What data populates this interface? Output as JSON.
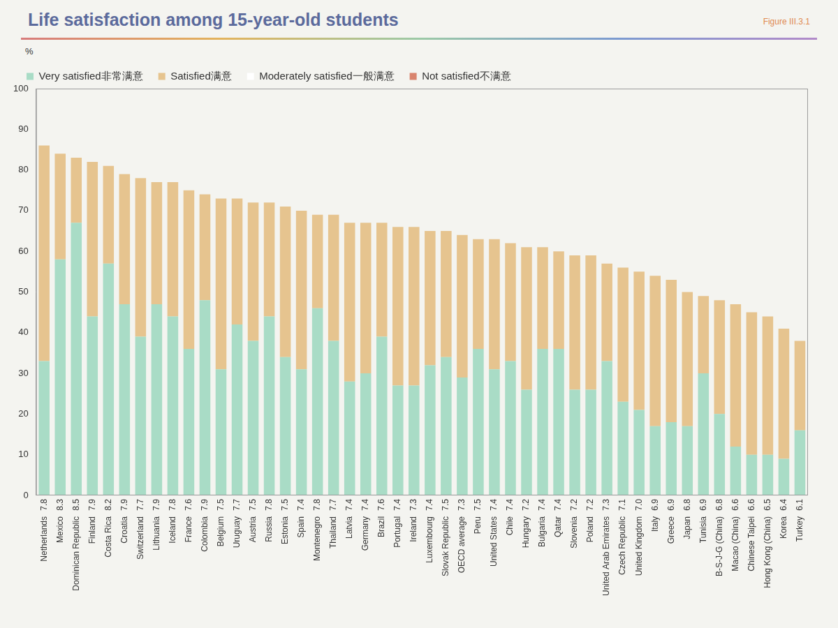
{
  "chart_data": {
    "type": "bar",
    "title": "Life satisfaction among 15-year-old students",
    "figure_label": "Figure III.3.1",
    "ylabel": "%",
    "categories": [
      "Netherlands",
      "Mexico",
      "Dominican Republic",
      "Finland",
      "Costa Rica",
      "Croatia",
      "Switzerland",
      "Lithuania",
      "Iceland",
      "France",
      "Colombia",
      "Belgium",
      "Uruguay",
      "Austria",
      "Russia",
      "Estonia",
      "Spain",
      "Montenegro",
      "Thailand",
      "Latvia",
      "Germany",
      "Brazil",
      "Portugal",
      "Ireland",
      "Luxembourg",
      "Slovak Republic",
      "OECD average",
      "Peru",
      "United States",
      "Chile",
      "Hungary",
      "Bulgaria",
      "Qatar",
      "Slovenia",
      "Poland",
      "United Arab Emirates",
      "Czech Republic",
      "United Kingdom",
      "Italy",
      "Greece",
      "Japan",
      "Tunisia",
      "B-S-J-G (China)",
      "Macao (China)",
      "Chinese Taipei",
      "Hong Kong (China)",
      "Korea",
      "Turkey"
    ],
    "means": [
      7.8,
      8.3,
      8.5,
      7.9,
      8.2,
      7.9,
      7.7,
      7.9,
      7.8,
      7.6,
      7.9,
      7.5,
      7.7,
      7.5,
      7.8,
      7.5,
      7.4,
      7.8,
      7.7,
      7.4,
      7.4,
      7.6,
      7.4,
      7.3,
      7.4,
      7.5,
      7.3,
      7.5,
      7.4,
      7.4,
      7.2,
      7.4,
      7.4,
      7.2,
      7.2,
      7.3,
      7.1,
      {
        "value": 7,
        "label": "7.0"
      },
      6.9,
      6.9,
      6.8,
      6.9,
      6.8,
      6.6,
      6.6,
      6.5,
      6.4,
      6.1
    ],
    "series": [
      {
        "name": "Very satisfied非常满意",
        "color": "#a9dcc6",
        "values": [
          33,
          58,
          67,
          44,
          57,
          47,
          39,
          47,
          44,
          36,
          48,
          31,
          42,
          38,
          44,
          34,
          31,
          46,
          38,
          28,
          30,
          39,
          27,
          27,
          32,
          34,
          29,
          36,
          31,
          33,
          26,
          36,
          36,
          26,
          26,
          33,
          23,
          21,
          17,
          18,
          17,
          30,
          20,
          12,
          10,
          10,
          9,
          16
        ]
      },
      {
        "name": "Satisfied满意",
        "color": "#e6c48f",
        "values": [
          53,
          26,
          16,
          38,
          24,
          32,
          39,
          30,
          33,
          39,
          26,
          42,
          31,
          34,
          28,
          37,
          39,
          23,
          31,
          39,
          37,
          28,
          39,
          39,
          33,
          31,
          35,
          27,
          32,
          29,
          35,
          25,
          24,
          33,
          33,
          24,
          33,
          34,
          37,
          35,
          33,
          19,
          28,
          35,
          35,
          34,
          32,
          22
        ]
      },
      {
        "name": "Moderately satisfied一般满意",
        "color": "#ffffff",
        "values": [
          null,
          null,
          null,
          null,
          null,
          null,
          null,
          null,
          null,
          null,
          null,
          null,
          null,
          null,
          null,
          null,
          null,
          null,
          null,
          null,
          null,
          null,
          null,
          null,
          null,
          null,
          null,
          null,
          null,
          null,
          null,
          null,
          null,
          null,
          null,
          null,
          null,
          null,
          null,
          null,
          null,
          null,
          null,
          null,
          null,
          null,
          null,
          null
        ]
      },
      {
        "name": "Not satisfied不满意",
        "color": "#d9846e",
        "values": [
          null,
          null,
          null,
          null,
          null,
          null,
          null,
          null,
          null,
          null,
          null,
          null,
          null,
          null,
          null,
          null,
          null,
          null,
          null,
          null,
          null,
          null,
          null,
          null,
          null,
          null,
          null,
          null,
          null,
          null,
          null,
          null,
          null,
          null,
          null,
          null,
          null,
          null,
          null,
          null,
          null,
          null,
          null,
          null,
          null,
          null,
          null,
          null
        ]
      }
    ],
    "ylim": [
      0,
      100
    ],
    "yticks": [
      0,
      10,
      20,
      30,
      40,
      50,
      60,
      70,
      80,
      90,
      100
    ],
    "stacked": true,
    "grid": false,
    "legend": "top"
  }
}
